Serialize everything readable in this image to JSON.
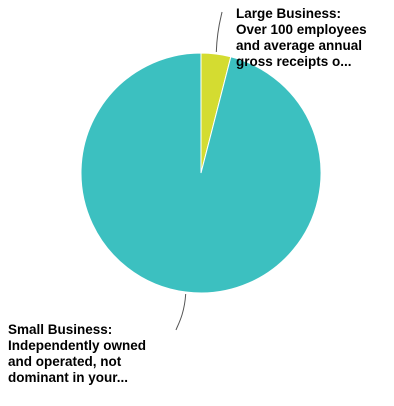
{
  "chart_data": {
    "type": "pie",
    "title": "",
    "slices": [
      {
        "label": "Large Business:\nOver 100 employees\nand average annual\ngross receipts o...",
        "value": 4,
        "color": "#d4dc31"
      },
      {
        "label": "Small Business:\nIndependently owned\nand operated, not\ndominant in your...",
        "value": 96,
        "color": "#3cc0c0"
      }
    ],
    "start_angle_deg": 0,
    "direction": "clockwise",
    "slice_border_color": "#ffffff",
    "leader_line_color": "#555555"
  }
}
